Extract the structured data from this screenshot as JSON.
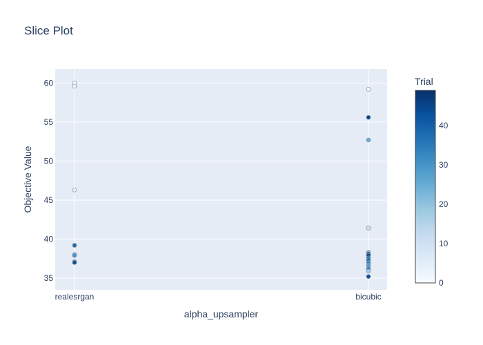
{
  "chart_data": {
    "type": "scatter",
    "title": "Slice Plot",
    "xlabel": "alpha_upsampler",
    "ylabel": "Objective Value",
    "categories": [
      "realesrgan",
      "bicubic"
    ],
    "ylim": [
      33.5,
      61.8
    ],
    "yticks": [
      35,
      40,
      45,
      50,
      55,
      60
    ],
    "grid": true,
    "colorbar": {
      "title": "Trial",
      "min": 0,
      "max": 49,
      "ticks": [
        0,
        10,
        20,
        30,
        40
      ],
      "colorscale": [
        "#f7fbff",
        "#deebf7",
        "#c6dbef",
        "#9ecae1",
        "#6baed6",
        "#4292c6",
        "#2171b5",
        "#08519c",
        "#08306b"
      ]
    },
    "points": [
      {
        "category": "realesrgan",
        "y": 60.0,
        "trial": 0
      },
      {
        "category": "realesrgan",
        "y": 59.6,
        "trial": 2
      },
      {
        "category": "realesrgan",
        "y": 46.3,
        "trial": 4
      },
      {
        "category": "realesrgan",
        "y": 39.2,
        "trial": 38
      },
      {
        "category": "realesrgan",
        "y": 38.0,
        "trial": 33
      },
      {
        "category": "realesrgan",
        "y": 37.9,
        "trial": 30
      },
      {
        "category": "realesrgan",
        "y": 37.1,
        "trial": 47
      },
      {
        "category": "realesrgan",
        "y": 37.0,
        "trial": 44
      },
      {
        "category": "bicubic",
        "y": 59.2,
        "trial": 1
      },
      {
        "category": "bicubic",
        "y": 55.6,
        "trial": 45
      },
      {
        "category": "bicubic",
        "y": 52.7,
        "trial": 25
      },
      {
        "category": "bicubic",
        "y": 41.4,
        "trial": 10
      },
      {
        "category": "bicubic",
        "y": 38.3,
        "trial": 22
      },
      {
        "category": "bicubic",
        "y": 38.1,
        "trial": 42
      },
      {
        "category": "bicubic",
        "y": 37.9,
        "trial": 48
      },
      {
        "category": "bicubic",
        "y": 37.6,
        "trial": 36
      },
      {
        "category": "bicubic",
        "y": 37.3,
        "trial": 40
      },
      {
        "category": "bicubic",
        "y": 37.0,
        "trial": 32
      },
      {
        "category": "bicubic",
        "y": 36.6,
        "trial": 28
      },
      {
        "category": "bicubic",
        "y": 36.2,
        "trial": 34
      },
      {
        "category": "bicubic",
        "y": 35.9,
        "trial": 18
      },
      {
        "category": "bicubic",
        "y": 35.2,
        "trial": 43
      }
    ]
  }
}
